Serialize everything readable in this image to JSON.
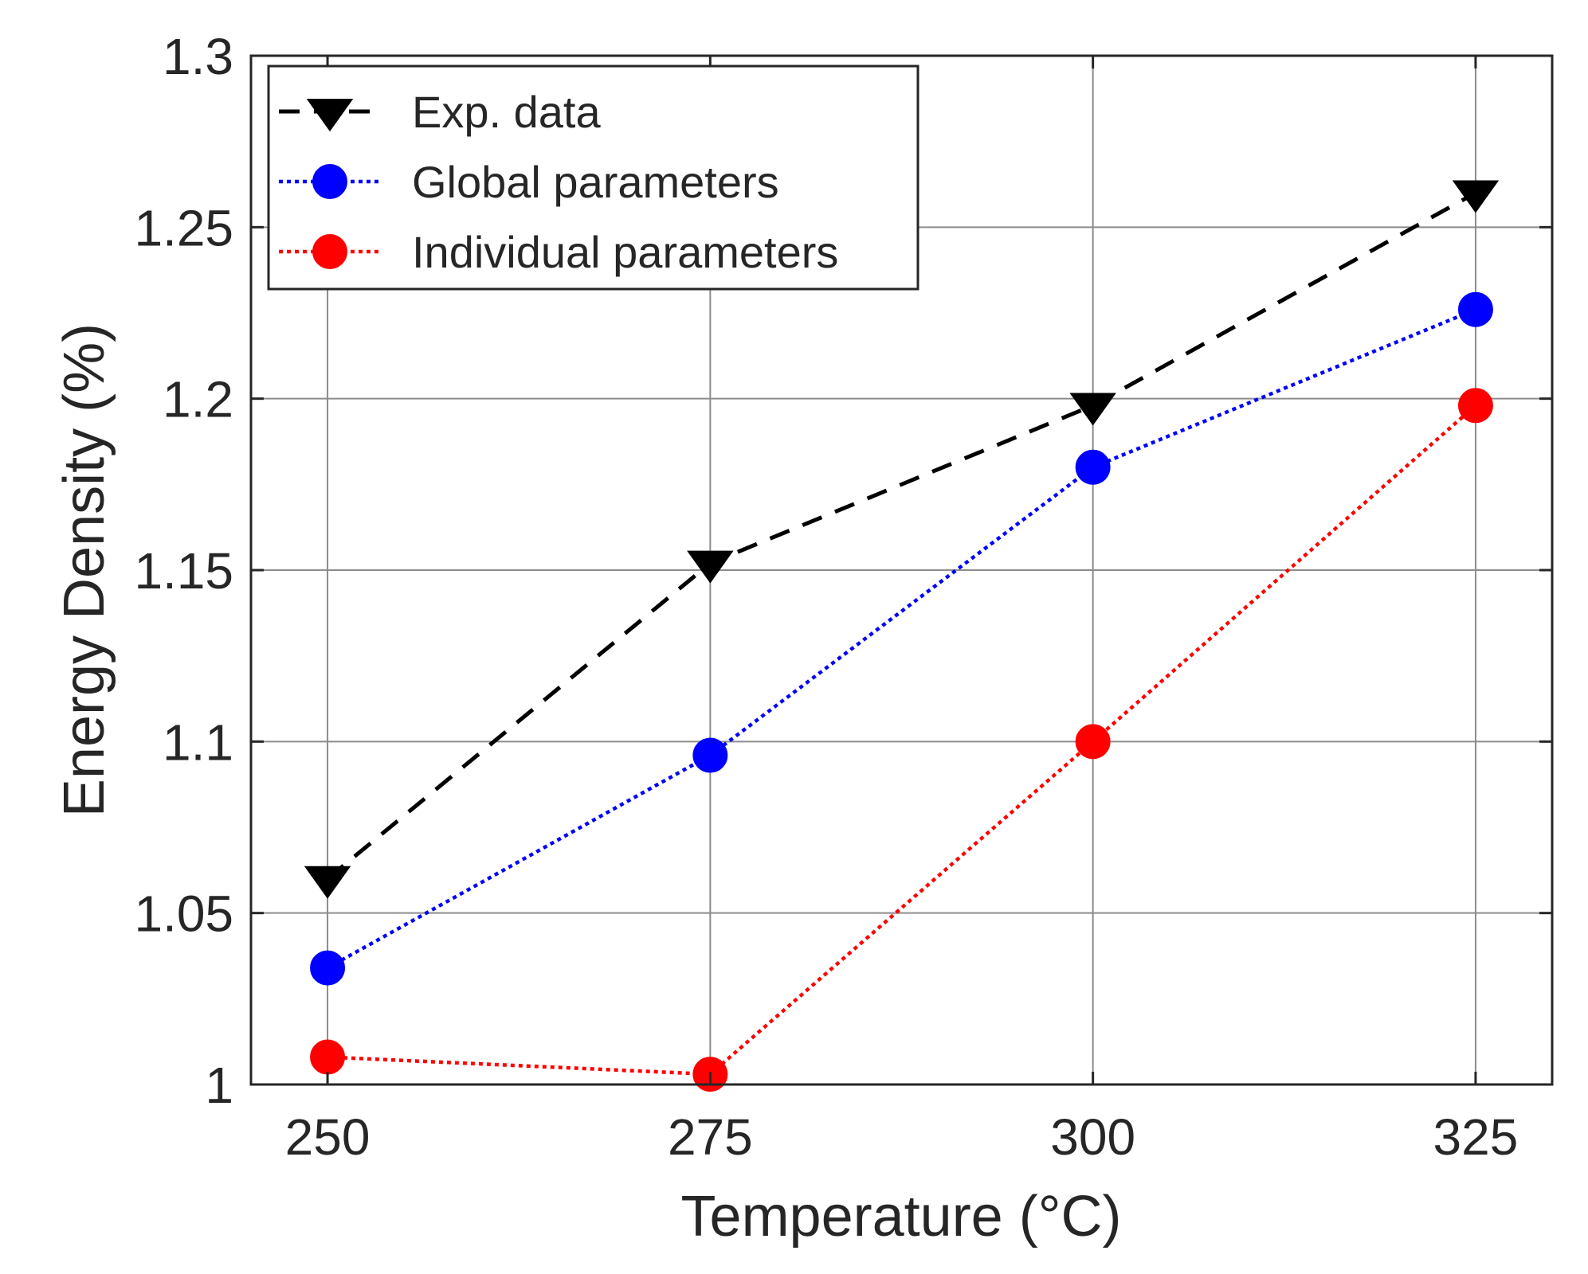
{
  "chart_data": {
    "type": "line",
    "title": "",
    "xlabel": "Temperature (°C)",
    "ylabel": "Energy Density (%)",
    "x": [
      250,
      275,
      300,
      325
    ],
    "xlim": [
      245,
      330
    ],
    "ylim": [
      1,
      1.3
    ],
    "xticks": [
      250,
      275,
      300,
      325
    ],
    "xtick_labels": [
      "250",
      "275",
      "300",
      "325"
    ],
    "yticks": [
      1,
      1.05,
      1.1,
      1.15,
      1.2,
      1.25,
      1.3
    ],
    "ytick_labels": [
      "1",
      "1.05",
      "1.1",
      "1.15",
      "1.2",
      "1.25",
      "1.3"
    ],
    "grid": true,
    "legend_position": "top-left",
    "series": [
      {
        "name": "Exp. data",
        "values": [
          1.06,
          1.152,
          1.198,
          1.26
        ],
        "color": "#000000",
        "line_style": "dashed",
        "marker": "down-triangle"
      },
      {
        "name": "Global parameters",
        "values": [
          1.034,
          1.096,
          1.18,
          1.226
        ],
        "color": "#0000FF",
        "line_style": "dotted",
        "marker": "circle"
      },
      {
        "name": "Individual parameters",
        "values": [
          1.008,
          1.003,
          1.1,
          1.198
        ],
        "color": "#FF0000",
        "line_style": "dotted",
        "marker": "circle"
      }
    ]
  }
}
